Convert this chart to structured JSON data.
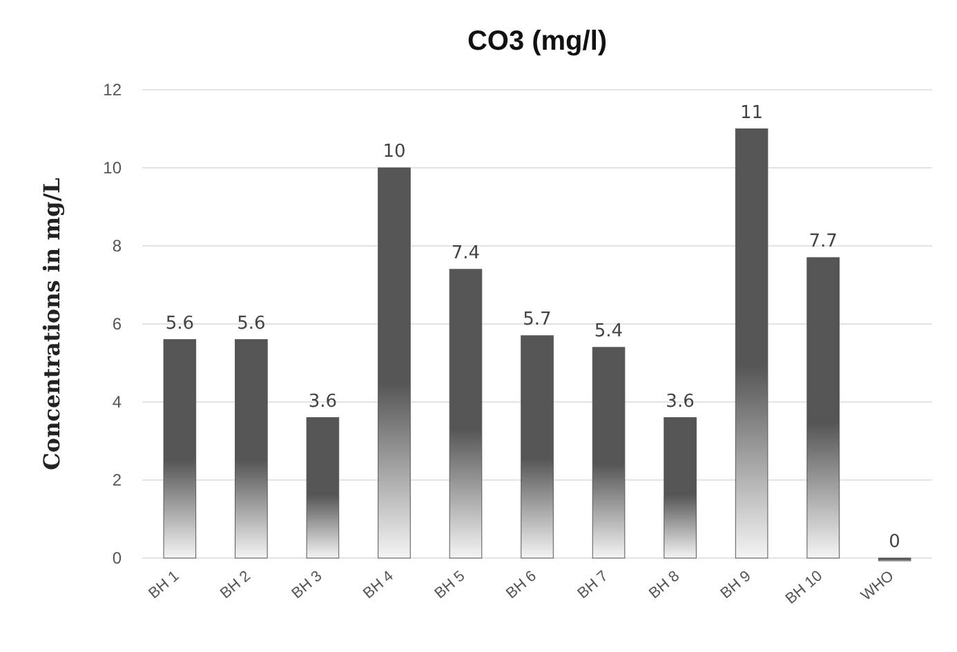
{
  "chart_data": {
    "type": "bar",
    "title": "CO3 (mg/l)",
    "ylabel": "Concentrations in mg/L",
    "categories": [
      "BH 1",
      "BH 2",
      "BH 3",
      "BH 4",
      "BH 5",
      "BH 6",
      "BH 7",
      "BH 8",
      "BH 9",
      "BH 10",
      "WHO"
    ],
    "values": [
      5.6,
      5.6,
      3.6,
      10,
      7.4,
      5.7,
      5.4,
      3.6,
      11,
      7.7,
      0
    ],
    "color": "#555555",
    "ylim": [
      0,
      12
    ],
    "yticks": [
      0,
      2,
      4,
      6,
      8,
      10,
      12
    ],
    "grid": "y",
    "data_labels": true
  }
}
